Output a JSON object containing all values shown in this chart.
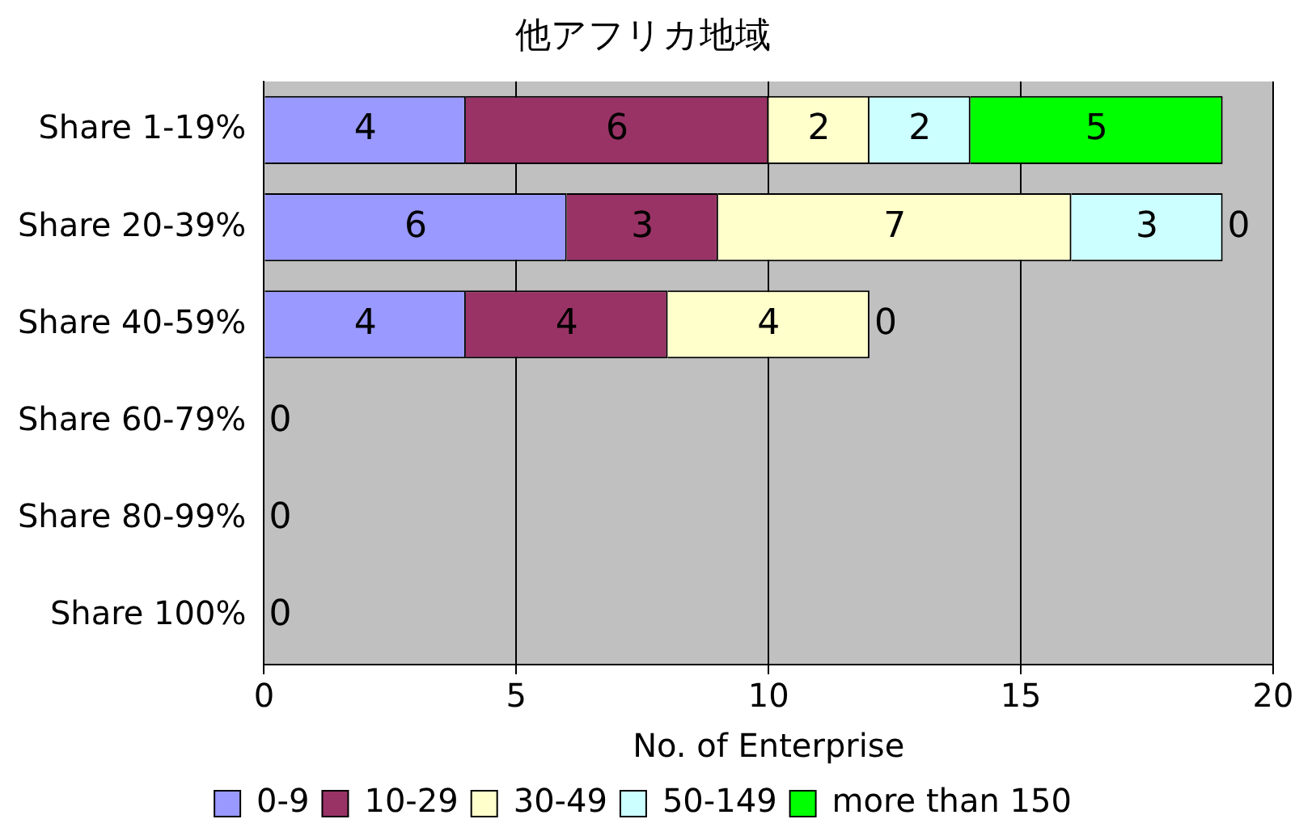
{
  "chart_data": {
    "type": "bar",
    "orientation": "horizontal",
    "stacked": true,
    "title": "他アフリカ地域",
    "xlabel": "No. of Enterprise",
    "categories": [
      "Share 1-19%",
      "Share 20-39%",
      "Share 40-59%",
      "Share 60-79%",
      "Share 80-99%",
      "Share 100%"
    ],
    "series": [
      {
        "name": "0-9",
        "color": "#9999ff",
        "values": [
          4,
          6,
          4,
          0,
          0,
          0
        ],
        "value_labels": [
          "4",
          "6",
          "4",
          "0",
          "0",
          "0"
        ]
      },
      {
        "name": "10-29",
        "color": "#993366",
        "values": [
          6,
          3,
          4,
          0,
          0,
          0
        ],
        "value_labels": [
          "6",
          "3",
          "4",
          null,
          null,
          null
        ]
      },
      {
        "name": "30-49",
        "color": "#ffffcc",
        "values": [
          2,
          7,
          4,
          0,
          0,
          0
        ],
        "value_labels": [
          "2",
          "7",
          "4",
          null,
          null,
          null
        ]
      },
      {
        "name": "50-149",
        "color": "#ccffff",
        "values": [
          2,
          3,
          0,
          0,
          0,
          0
        ],
        "value_labels": [
          "2",
          "3",
          null,
          null,
          null,
          null
        ]
      },
      {
        "name": "more than 150",
        "color": "#00ff00",
        "values": [
          5,
          0,
          0,
          0,
          0,
          0
        ],
        "value_labels": [
          "5",
          "0",
          "0",
          null,
          null,
          null
        ]
      }
    ],
    "xlim": [
      0,
      20
    ],
    "xticks": [
      0,
      5,
      10,
      15,
      20
    ],
    "grid": "x",
    "legend": "bottom"
  }
}
